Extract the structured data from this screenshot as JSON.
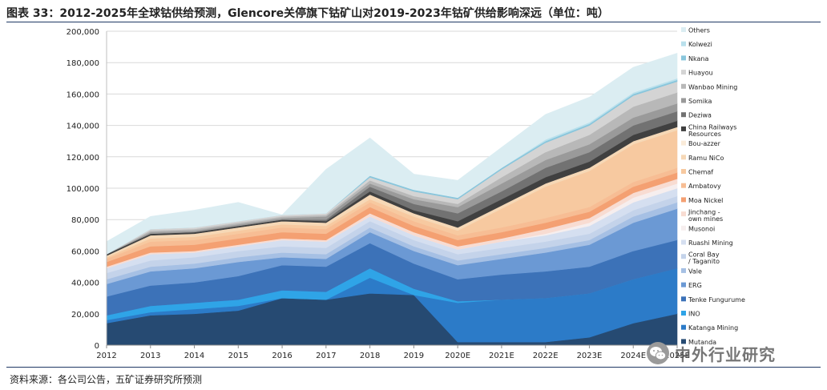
{
  "title": "图表 33：2012-2025年全球钴供给预测，Glencore关停旗下钴矿山对2019-2023年钴矿供给影响深远（单位：吨）",
  "source": "资料来源：各公司公告，五矿证券研究所预测",
  "watermark": {
    "text": "中外行业研究",
    "icon": "wechat-logo-icon"
  },
  "chart_data": {
    "type": "area",
    "stacked": true,
    "categories": [
      "2012",
      "2013",
      "2014",
      "2015",
      "2016",
      "2017",
      "2018",
      "2019",
      "2020E",
      "2021E",
      "2022E",
      "2023E",
      "2024E",
      "2025E"
    ],
    "y_tick_labels": [
      "0",
      "20,000",
      "40,000",
      "60,000",
      "80,000",
      "100,000",
      "120,000",
      "140,000",
      "160,000",
      "180,000",
      "200,000"
    ],
    "ylim": [
      0,
      200000
    ],
    "grid": true,
    "legend_position": "right",
    "legend_order": "top-to-bottom reversed stacking",
    "series": [
      {
        "name": "Mutanda",
        "color": "#264a72",
        "values": [
          14000,
          19000,
          20000,
          22000,
          30000,
          29000,
          33000,
          32000,
          2000,
          2000,
          2000,
          5000,
          14000,
          20000
        ]
      },
      {
        "name": "Katanga Mining",
        "color": "#2c7bc8",
        "values": [
          2000,
          2000,
          3000,
          3000,
          0,
          0,
          10000,
          0,
          25000,
          27000,
          28000,
          28000,
          28000,
          29000
        ]
      },
      {
        "name": "INO",
        "color": "#2fa4e7",
        "values": [
          3000,
          4000,
          4000,
          4000,
          5000,
          5000,
          6000,
          4000,
          1000,
          0,
          0,
          0,
          0,
          0
        ]
      },
      {
        "name": "Tenke Fungurume",
        "color": "#3c72b8",
        "values": [
          12000,
          13000,
          13000,
          15000,
          16000,
          16000,
          16000,
          16000,
          14000,
          16000,
          17000,
          17000,
          18000,
          18000
        ]
      },
      {
        "name": "ERG",
        "color": "#6b99d4",
        "values": [
          8000,
          9000,
          9000,
          9000,
          5000,
          5000,
          7000,
          8000,
          9000,
          10000,
          12000,
          14000,
          18000,
          20000
        ]
      },
      {
        "name": "Vale",
        "color": "#a6c0e4",
        "values": [
          3000,
          3000,
          3000,
          3000,
          3000,
          3000,
          3000,
          3000,
          3000,
          3000,
          3000,
          3000,
          4000,
          4000
        ]
      },
      {
        "name": "Coral Bay / Taganito",
        "color": "#c4d3ea",
        "values": [
          4000,
          4000,
          4000,
          4000,
          4000,
          4000,
          4000,
          4000,
          4000,
          4000,
          4000,
          4000,
          4000,
          4000
        ]
      },
      {
        "name": "Ruashi Mining",
        "color": "#d5dff0",
        "values": [
          3000,
          4000,
          3000,
          3000,
          4000,
          4000,
          3000,
          3000,
          3000,
          4000,
          4000,
          5000,
          5000,
          5000
        ]
      },
      {
        "name": "Musonoi",
        "color": "#f6eeee",
        "values": [
          0,
          0,
          0,
          0,
          0,
          0,
          0,
          0,
          0,
          0,
          1000,
          2000,
          3000,
          3000
        ]
      },
      {
        "name": "Jinchang - own mines",
        "color": "#f8dcd2",
        "values": [
          1000,
          1000,
          1000,
          1000,
          1000,
          1000,
          2000,
          2000,
          2000,
          2000,
          3000,
          3000,
          3000,
          3000
        ]
      },
      {
        "name": "Moa Nickel",
        "color": "#f4a072",
        "values": [
          3000,
          4000,
          4000,
          4000,
          4000,
          4000,
          4000,
          4000,
          4000,
          4000,
          4000,
          4000,
          4000,
          4000
        ]
      },
      {
        "name": "Ambatovy",
        "color": "#f7bd94",
        "values": [
          2000,
          3000,
          3000,
          3000,
          3000,
          3000,
          3000,
          3000,
          3000,
          3000,
          3000,
          3000,
          3000,
          3000
        ]
      },
      {
        "name": "Chemaf",
        "color": "#f7c9a0",
        "values": [
          1000,
          2000,
          2000,
          2000,
          2000,
          2000,
          2000,
          3000,
          3000,
          12000,
          20000,
          23000,
          24000,
          24000
        ]
      },
      {
        "name": "Ramu NiCo",
        "color": "#f6d8b6",
        "values": [
          1000,
          2000,
          2000,
          2000,
          2000,
          2000,
          3000,
          2000,
          2000,
          2000,
          2000,
          2000,
          2000,
          2000
        ]
      },
      {
        "name": "Bou-azzer",
        "color": "#faebd9",
        "values": [
          0,
          0,
          0,
          0,
          0,
          0,
          0,
          0,
          0,
          0,
          0,
          0,
          0,
          0
        ]
      },
      {
        "name": "China Railways Resources",
        "color": "#404040",
        "values": [
          1000,
          1000,
          1000,
          1000,
          1000,
          1000,
          2000,
          2000,
          4000,
          4000,
          4000,
          4000,
          4000,
          4000
        ]
      },
      {
        "name": "Deziwa",
        "color": "#727272",
        "values": [
          0,
          0,
          0,
          0,
          0,
          1000,
          3000,
          4000,
          5000,
          5000,
          6000,
          6000,
          6000,
          6000
        ]
      },
      {
        "name": "Somika",
        "color": "#9a9a9a",
        "values": [
          0,
          1000,
          1000,
          1000,
          1000,
          2000,
          2000,
          3000,
          4000,
          5000,
          5000,
          5000,
          5000,
          5000
        ]
      },
      {
        "name": "Wanbao Mining",
        "color": "#b8b8b8",
        "values": [
          0,
          1000,
          1000,
          1000,
          1000,
          1000,
          2000,
          2000,
          2000,
          4000,
          5000,
          6000,
          7000,
          7000
        ]
      },
      {
        "name": "Huayou",
        "color": "#d4d4d4",
        "values": [
          0,
          1000,
          1000,
          1000,
          1000,
          1000,
          2000,
          3000,
          3000,
          5000,
          6000,
          6000,
          7000,
          7000
        ]
      },
      {
        "name": "Nkana",
        "color": "#89c6dc",
        "values": [
          0,
          0,
          0,
          0,
          0,
          0,
          1000,
          1000,
          1000,
          1000,
          1000,
          1000,
          1000,
          1000
        ]
      },
      {
        "name": "Kolwezi",
        "color": "#b9e0ec",
        "values": [
          0,
          0,
          0,
          0,
          0,
          0,
          0,
          0,
          0,
          0,
          1000,
          1000,
          1000,
          1000
        ]
      },
      {
        "name": "Others",
        "color": "#dbedf2",
        "values": [
          8000,
          8000,
          11000,
          12000,
          0,
          28000,
          24000,
          10000,
          11000,
          13000,
          16000,
          16000,
          16000,
          16000
        ]
      }
    ]
  }
}
